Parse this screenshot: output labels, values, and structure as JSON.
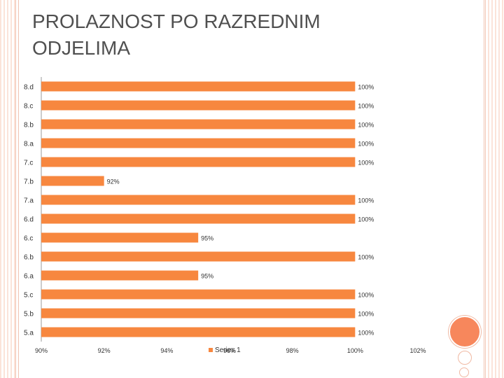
{
  "slide": {
    "title_line1": "PROLAZNOST PO RAZREDNIM",
    "title_line2": "ODJELIMA"
  },
  "colors": {
    "bar": "#f7873f",
    "accent": "#f7875c",
    "decoration": "#fbe3d9",
    "axis": "#9a9a9a",
    "text": "#333333"
  },
  "chart_data": {
    "type": "bar",
    "orientation": "horizontal",
    "categories": [
      "8.d",
      "8.c",
      "8.b",
      "8.a",
      "7.c",
      "7.b",
      "7.a",
      "6.d",
      "6.c",
      "6.b",
      "6.a",
      "5.c",
      "5.b",
      "5.a"
    ],
    "series": [
      {
        "name": "Series 1",
        "values": [
          100,
          100,
          100,
          100,
          100,
          92,
          100,
          100,
          95,
          100,
          95,
          100,
          100,
          100
        ],
        "labels": [
          "100%",
          "100%",
          "100%",
          "100%",
          "100%",
          "92%",
          "100%",
          "100%",
          "95%",
          "100%",
          "95%",
          "100%",
          "100%",
          "100%"
        ]
      }
    ],
    "xlim": [
      90,
      102
    ],
    "xticks": [
      90,
      92,
      94,
      96,
      98,
      100,
      102
    ],
    "xtick_labels": [
      "90%",
      "92%",
      "94%",
      "96%",
      "98%",
      "100%",
      "102%"
    ],
    "legend": "bottom-center",
    "grid": false
  }
}
